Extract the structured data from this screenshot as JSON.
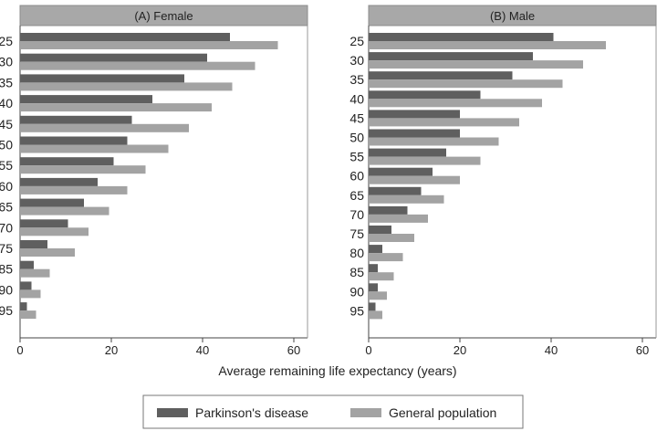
{
  "chart_data": [
    {
      "type": "bar",
      "orientation": "horizontal",
      "title": "(A) Female",
      "categories": [
        "25",
        "30",
        "35",
        "40",
        "45",
        "50",
        "55",
        "60",
        "65",
        "70",
        "75",
        "85",
        "90",
        "95"
      ],
      "series": [
        {
          "name": "Parkinson's disease",
          "color": "#5f5f5f",
          "values": [
            46,
            41,
            36,
            29,
            24.5,
            23.5,
            20.5,
            17,
            14,
            10.5,
            6,
            3,
            2.5,
            1.5
          ]
        },
        {
          "name": "General population",
          "color": "#a3a3a3",
          "values": [
            56.5,
            51.5,
            46.5,
            42,
            37,
            32.5,
            27.5,
            23.5,
            19.5,
            15,
            12,
            6.5,
            4.5,
            3.5
          ]
        }
      ],
      "xlim": [
        0,
        63
      ],
      "xticks": [
        0,
        20,
        40,
        60
      ]
    },
    {
      "type": "bar",
      "orientation": "horizontal",
      "title": "(B) Male",
      "categories": [
        "25",
        "30",
        "35",
        "40",
        "45",
        "50",
        "55",
        "60",
        "65",
        "70",
        "75",
        "80",
        "85",
        "90",
        "95"
      ],
      "series": [
        {
          "name": "Parkinson's disease",
          "color": "#5f5f5f",
          "values": [
            40.5,
            36,
            31.5,
            24.5,
            20,
            20,
            17,
            14,
            11.5,
            8.5,
            5,
            3,
            2,
            2,
            1.5
          ]
        },
        {
          "name": "General population",
          "color": "#a3a3a3",
          "values": [
            52,
            47,
            42.5,
            38,
            33,
            28.5,
            24.5,
            20,
            16.5,
            13,
            10,
            7.5,
            5.5,
            4,
            3
          ]
        }
      ],
      "xlim": [
        0,
        63
      ],
      "xticks": [
        0,
        20,
        40,
        60
      ]
    }
  ],
  "shared": {
    "xlabel": "Average remaining life expectancy (years)",
    "legend": [
      "Parkinson's disease",
      "General population"
    ]
  }
}
